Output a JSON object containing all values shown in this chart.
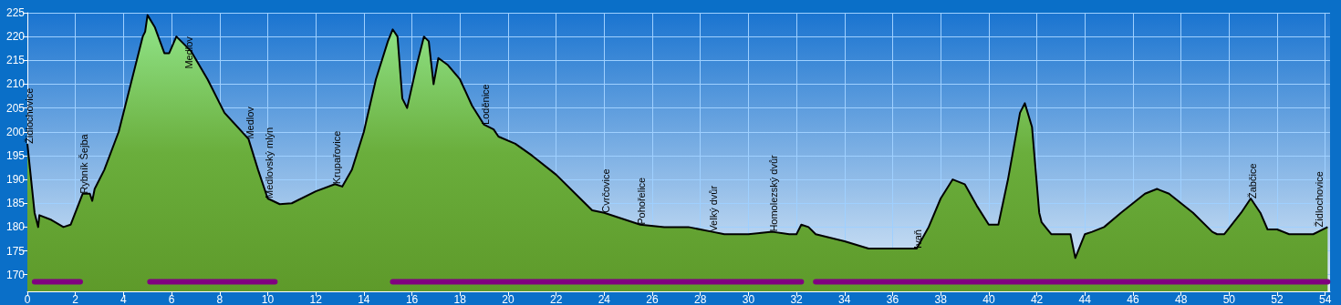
{
  "chart_data": {
    "type": "area",
    "xlim": [
      0,
      54.2
    ],
    "xticks": [
      0,
      2,
      4,
      6,
      8,
      10,
      12,
      14,
      16,
      18,
      20,
      22,
      24,
      26,
      28,
      30,
      32,
      34,
      36,
      38,
      40,
      42,
      44,
      46,
      48,
      50,
      52,
      54
    ],
    "ylim": [
      166.5,
      225
    ],
    "yticks": [
      170,
      175,
      180,
      185,
      190,
      195,
      200,
      205,
      210,
      215,
      220,
      225
    ],
    "grid": true,
    "marker": "none",
    "series": [
      {
        "type": "area",
        "color": "#000000",
        "x": [
          0,
          0.3,
          0.45,
          0.5,
          1.0,
          1.5,
          1.8,
          2.3,
          2.6,
          2.7,
          2.8,
          3.2,
          3.8,
          4.3,
          4.8,
          4.9,
          5.0,
          5.3,
          5.7,
          5.9,
          6.2,
          6.8,
          7.5,
          8.2,
          9.2,
          9.6,
          10.0,
          10.5,
          11.0,
          12.0,
          12.8,
          13.1,
          13.5,
          14.0,
          14.5,
          15.0,
          15.2,
          15.4,
          15.6,
          15.8,
          16.2,
          16.5,
          16.7,
          16.9,
          17.1,
          17.5,
          18.0,
          18.5,
          19.0,
          19.4,
          19.6,
          20.3,
          21.0,
          22.0,
          23.0,
          23.5,
          24.0,
          25.5,
          26.5,
          27.5,
          28.5,
          29.0,
          30.0,
          31.0,
          31.7,
          32.0,
          32.2,
          32.5,
          32.8,
          34.0,
          35.0,
          36.0,
          37.0,
          37.5,
          38.0,
          38.5,
          39.0,
          39.5,
          40.0,
          40.4,
          40.8,
          41.3,
          41.5,
          41.8,
          42.1,
          42.2,
          42.6,
          43.0,
          43.4,
          43.6,
          44.0,
          44.3,
          44.8,
          45.5,
          46.5,
          47.0,
          47.5,
          48.5,
          49.3,
          49.5,
          49.8,
          50.5,
          50.9,
          51.3,
          51.6,
          52.0,
          52.5,
          53.5,
          54.1
        ],
        "values": [
          197.5,
          183,
          180,
          182.5,
          181.5,
          180,
          180.5,
          187,
          187,
          185.5,
          188,
          192,
          200,
          210,
          220,
          221,
          224.5,
          222,
          216.5,
          216.5,
          220,
          217,
          211,
          204,
          198.5,
          192,
          186,
          184.8,
          185,
          187.5,
          189,
          188.5,
          192,
          200,
          211,
          219,
          221.5,
          220,
          207,
          205,
          214,
          220,
          219,
          210,
          215.5,
          214,
          211,
          205.5,
          201.5,
          200.5,
          199,
          197.5,
          195,
          191,
          186,
          183.5,
          183,
          180.5,
          180,
          180,
          179,
          178.5,
          178.5,
          179,
          178.5,
          178.5,
          180.5,
          180,
          178.5,
          177,
          175.5,
          175.5,
          175.5,
          180,
          186,
          190,
          189,
          184.5,
          180.5,
          180.5,
          190,
          204,
          206,
          201,
          183,
          181,
          178.5,
          178.5,
          178.5,
          173.5,
          178.5,
          179,
          180,
          183,
          187,
          188,
          187,
          183,
          179,
          178.5,
          178.5,
          183,
          186,
          183,
          179.5,
          179.5,
          178.5,
          178.5,
          180
        ]
      },
      {
        "type": "line",
        "color": "#800080",
        "x": [
          0.3,
          2.2,
          3.5,
          5.1,
          10.3,
          12.5,
          15.2,
          32.2,
          32.5,
          32.8,
          54.1
        ],
        "values": [
          168.5,
          168.5,
          null,
          168.5,
          168.5,
          null,
          168.5,
          168.5,
          null,
          168.5,
          168.5
        ]
      }
    ],
    "annotations": [
      {
        "text": "Židlochovice",
        "x": 0,
        "y": 197.5
      },
      {
        "text": "Rybník Šejba",
        "x": 2.3,
        "y": 187
      },
      {
        "text": "Medlov",
        "x": 6.2,
        "y": 220
      },
      {
        "text": "Medlov",
        "x": 9.2,
        "y": 198.5
      },
      {
        "text": "Medlovský mlýn",
        "x": 10.0,
        "y": 186
      },
      {
        "text": "Krupařovice",
        "x": 12.8,
        "y": 189
      },
      {
        "text": "Loděnice",
        "x": 19.0,
        "y": 201.5
      },
      {
        "text": "Cvrčovice",
        "x": 24.0,
        "y": 183
      },
      {
        "text": "Pohořelice",
        "x": 25.5,
        "y": 180.5
      },
      {
        "text": "Velký dvůr",
        "x": 28.5,
        "y": 179
      },
      {
        "text": "Homolezský dvůr",
        "x": 31.0,
        "y": 179
      },
      {
        "text": "Ivaň",
        "x": 37.0,
        "y": 175.5
      },
      {
        "text": "Žabčice",
        "x": 50.9,
        "y": 186
      },
      {
        "text": "Židlochovice",
        "x": 54.1,
        "y": 180
      }
    ]
  }
}
